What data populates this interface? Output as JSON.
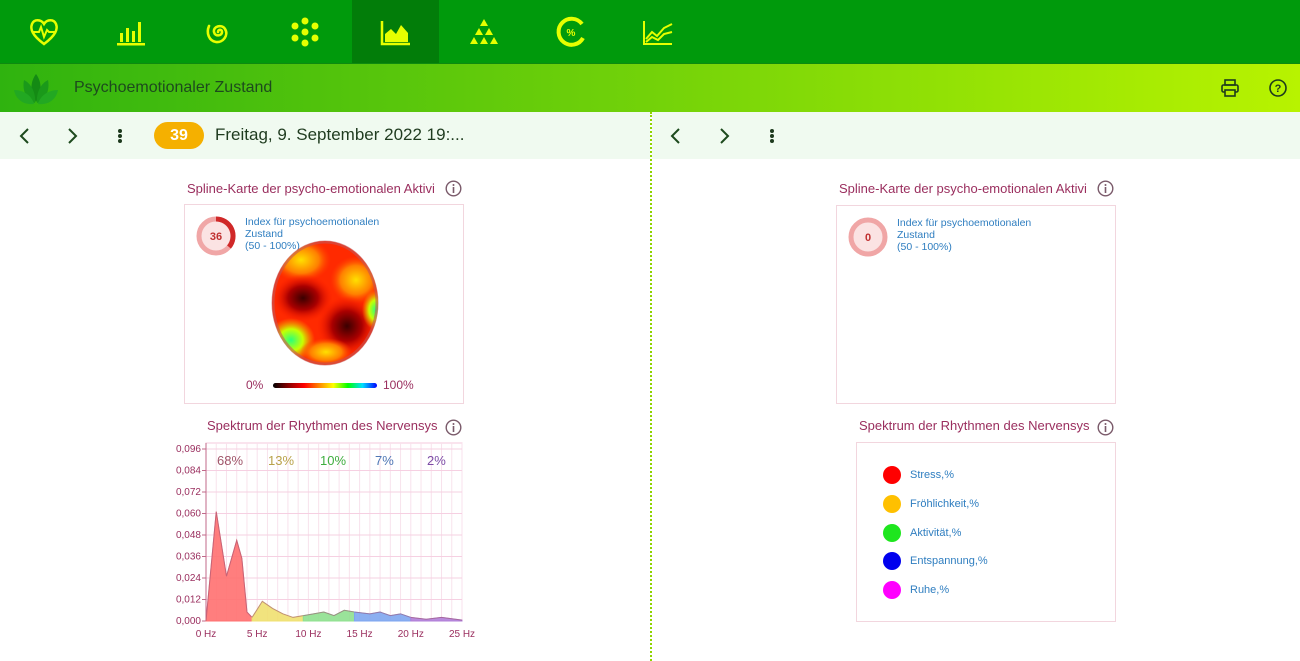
{
  "nav": {
    "items": [
      {
        "name": "heart-pulse-icon"
      },
      {
        "name": "bar-chart-icon"
      },
      {
        "name": "spiral-icon"
      },
      {
        "name": "flower-dots-icon"
      },
      {
        "name": "area-chart-icon",
        "active": true
      },
      {
        "name": "triangle-dots-icon"
      },
      {
        "name": "percent-ring-icon"
      },
      {
        "name": "line-chart-icon"
      }
    ],
    "colors": {
      "bar": "#009a0c",
      "active": "#027d09",
      "icon": "#e6ff00"
    }
  },
  "header": {
    "title": "Psychoemotionaler Zustand",
    "print_icon": "printer-icon",
    "help_icon": "question-icon"
  },
  "left": {
    "day_badge": "39",
    "date": "Freitag, 9. September 2022 19:...",
    "spline": {
      "title": "Spline-Karte der psycho-emotionalen Aktivi",
      "gauge_value": "36",
      "index_label": "Index für psychoemotionalen Zustand",
      "index_range": "(50 - 100%)",
      "scale_min": "0%",
      "scale_max": "100%"
    },
    "spectrum": {
      "title": "Spektrum der Rhythmen des Nervensys",
      "percentages": [
        {
          "value": "68%",
          "color": "#a0566a"
        },
        {
          "value": "13%",
          "color": "#b9a24a"
        },
        {
          "value": "10%",
          "color": "#3fae3f"
        },
        {
          "value": "7%",
          "color": "#4d77b5"
        },
        {
          "value": "2%",
          "color": "#7c4ca6"
        }
      ]
    }
  },
  "right": {
    "spline": {
      "title": "Spline-Karte der psycho-emotionalen Aktivi",
      "gauge_value": "0",
      "index_label": "Index für psychoemotionalen Zustand",
      "index_range": "(50 - 100%)"
    },
    "spectrum": {
      "title": "Spektrum der Rhythmen des Nervensys",
      "legend": [
        {
          "label": "Stress,%",
          "color": "#ff0000"
        },
        {
          "label": "Fröhlichkeit,%",
          "color": "#ffc000"
        },
        {
          "label": "Aktivität,%",
          "color": "#1ee61e"
        },
        {
          "label": "Entspannung,%",
          "color": "#0000ee"
        },
        {
          "label": "Ruhe,%",
          "color": "#ff00ff"
        }
      ]
    }
  },
  "chart_data": {
    "type": "area",
    "title": "Spektrum der Rhythmen des Nervensys",
    "xlabel": "",
    "ylabel": "",
    "x_ticks": [
      "0 Hz",
      "5 Hz",
      "10 Hz",
      "15 Hz",
      "20 Hz",
      "25 Hz"
    ],
    "y_ticks": [
      "0,000",
      "0,012",
      "0,024",
      "0,036",
      "0,048",
      "0,060",
      "0,072",
      "0,084",
      "0,096"
    ],
    "xlim": [
      0,
      25
    ],
    "ylim": [
      0,
      0.096
    ],
    "grid": true,
    "series": [
      {
        "band": "stress",
        "color": "#ff7070",
        "x": [
          0,
          1,
          2,
          3,
          3.5,
          4,
          4.5
        ],
        "y": [
          0,
          0.061,
          0.025,
          0.045,
          0.035,
          0.005,
          0.002
        ]
      },
      {
        "band": "joy",
        "color": "#f0e070",
        "x": [
          4.5,
          5.5,
          6.5,
          7.5,
          8.5,
          9.5
        ],
        "y": [
          0.002,
          0.011,
          0.007,
          0.004,
          0.002,
          0.003
        ]
      },
      {
        "band": "activity",
        "color": "#8fe08f",
        "x": [
          9.5,
          10.5,
          11.5,
          12.5,
          13.5,
          14.5
        ],
        "y": [
          0.003,
          0.004,
          0.005,
          0.003,
          0.006,
          0.005
        ]
      },
      {
        "band": "relaxation",
        "color": "#7ea6f0",
        "x": [
          14.5,
          16,
          17,
          18,
          19,
          20
        ],
        "y": [
          0.005,
          0.004,
          0.005,
          0.003,
          0.004,
          0.002
        ]
      },
      {
        "band": "calm",
        "color": "#b07ed8",
        "x": [
          20,
          21.5,
          23,
          25
        ],
        "y": [
          0.002,
          0.001,
          0.002,
          0.0005
        ]
      }
    ]
  }
}
